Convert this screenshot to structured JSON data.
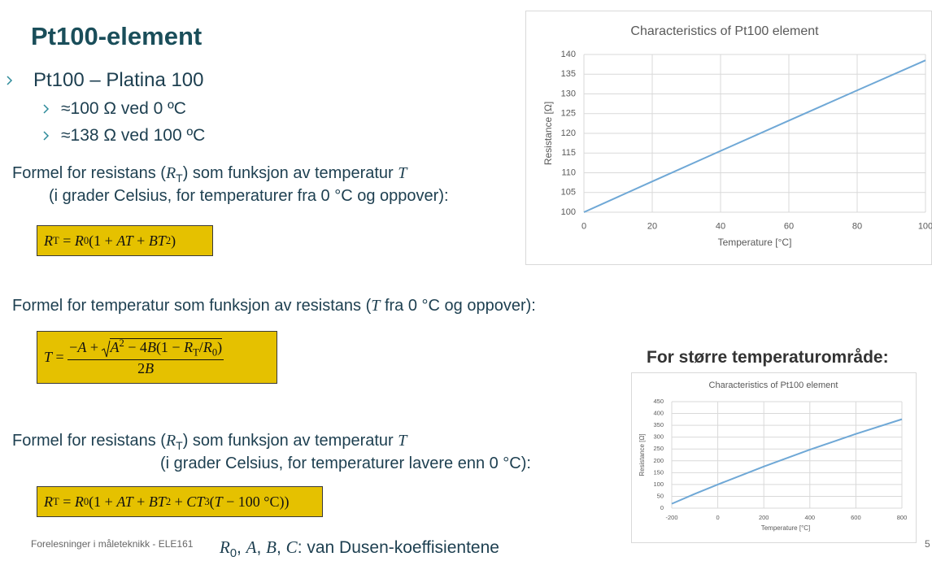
{
  "title": "Pt100-element",
  "bullets": {
    "main": "Pt100 – Platina 100",
    "sub": [
      "≈100 Ω ved 0 ºC",
      "≈138 Ω ved 100 ºC"
    ]
  },
  "sections": [
    {
      "lines": [
        [
          "Formel for resistans (",
          {
            "i": "R"
          },
          {
            "sub": "T"
          },
          ") som funksjon av temperatur ",
          {
            "i": "T"
          }
        ],
        [
          "(i grader Celsius, for temperaturer fra 0 °C og oppover):"
        ]
      ],
      "formula": [
        {
          "i": "R"
        },
        {
          "sub": "T"
        },
        " = ",
        {
          "i": "R"
        },
        {
          "sub": "0"
        },
        "(1 + ",
        {
          "i": "AT"
        },
        " + ",
        {
          "i": "BT"
        },
        {
          "sup": "2"
        },
        ")"
      ]
    },
    {
      "lines": [
        [
          "Formel for temperatur som funksjon av resistans (",
          {
            "i": "T"
          },
          " fra 0 °C og oppover):"
        ]
      ],
      "formula": {
        "lhs": [
          {
            "i": "T"
          },
          " = "
        ],
        "numerator": [
          "−",
          {
            "i": "A"
          },
          " + ",
          {
            "sqrt": [
              {
                "i": "A"
              },
              {
                "sup": "2"
              },
              " − 4",
              {
                "i": "B"
              },
              "(1 − ",
              {
                "i": "R"
              },
              {
                "sub": "T"
              },
              "/",
              {
                "i": "R"
              },
              {
                "sub": "0"
              },
              ")"
            ]
          }
        ],
        "denominator": [
          "2",
          {
            "i": "B"
          }
        ]
      }
    },
    {
      "lines": [
        [
          "Formel for resistans (",
          {
            "i": "R"
          },
          {
            "sub": "T"
          },
          ") som funksjon av temperatur ",
          {
            "i": "T"
          }
        ],
        [
          "(i grader Celsius, for temperaturer lavere enn 0 °C):"
        ]
      ],
      "formula": [
        {
          "i": "R"
        },
        {
          "sub": "T"
        },
        " = ",
        {
          "i": "R"
        },
        {
          "sub": "0"
        },
        "(1 + ",
        {
          "i": "AT"
        },
        " + ",
        {
          "i": "BT"
        },
        {
          "sup": "2"
        },
        " + ",
        {
          "i": "CT"
        },
        {
          "sup": "3"
        },
        "(",
        {
          "i": "T"
        },
        " − 100 °C))"
      ]
    }
  ],
  "side_heading": "For større temperaturområde:",
  "footer": {
    "course": "Forelesninger i måleteknikk - ELE161",
    "page": "5"
  },
  "note": [
    {
      "i": "R"
    },
    {
      "sub": "0"
    },
    ", ",
    {
      "i": "A"
    },
    ", ",
    {
      "i": "B"
    },
    ", ",
    {
      "i": "C"
    },
    ": van Dusen-koeffisientene"
  ],
  "chart_data": [
    {
      "type": "line",
      "title": "Characteristics of Pt100 element",
      "x_label": "Temperature   [°C]",
      "y_label": "Resistance  [Ω]",
      "x": [
        0,
        20,
        40,
        60,
        80,
        100
      ],
      "values": [
        100,
        107.79,
        115.54,
        123.24,
        130.9,
        138.51
      ],
      "color": "#6fa8d6",
      "xlim": [
        0,
        100
      ],
      "xticks": [
        0,
        20,
        40,
        60,
        80,
        100
      ],
      "ylim": [
        100,
        140
      ],
      "yticks": [
        100,
        105,
        110,
        115,
        120,
        125,
        130,
        135,
        140
      ],
      "grid": true
    },
    {
      "type": "line",
      "title": "Characteristics of Pt100 element",
      "x_label": "Temperature   [°C]",
      "y_label": "Resistance  [Ω]",
      "x": [
        -200,
        -100,
        0,
        200,
        400,
        600,
        800
      ],
      "values": [
        18.52,
        60.26,
        100,
        175.86,
        247.09,
        313.71,
        375.7
      ],
      "color": "#6fa8d6",
      "xlim": [
        -200,
        800
      ],
      "xticks": [
        -200,
        0,
        200,
        400,
        600,
        800
      ],
      "ylim": [
        0,
        450
      ],
      "yticks": [
        0,
        50,
        100,
        150,
        200,
        250,
        300,
        350,
        400,
        450
      ],
      "grid": true
    }
  ]
}
